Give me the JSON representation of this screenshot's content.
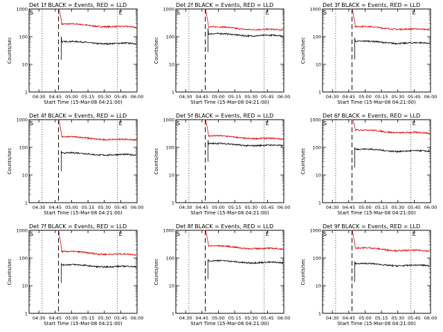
{
  "chart_data": [
    {
      "type": "line",
      "title": "Det 1f BLACK = Events, RED = LLD",
      "xlabel": "Start Time (15-Mar-08 04:21:00)",
      "ylabel": "Counts/sec",
      "x_ticks": [
        "04:30",
        "04:45",
        "05:00",
        "05:15",
        "05:30",
        "05:45",
        "06:00"
      ],
      "y_ticks": [
        "1",
        "10",
        "100",
        "1000"
      ],
      "y_scale": "log",
      "ylim": [
        1,
        1000
      ],
      "markers": {
        "start": "S",
        "end": "E"
      },
      "events_level": 58,
      "lld_level": 210,
      "events_peak": 100,
      "lld_peak": 2000
    },
    {
      "type": "line",
      "title": "Det 2f BLACK = Events, RED = LLD",
      "xlabel": "Start Time (15-Mar-08 04:21:00)",
      "ylabel": "Counts/sec",
      "x_ticks": [
        "04:30",
        "04:45",
        "05:00",
        "05:15",
        "05:30",
        "05:45",
        "06:00"
      ],
      "y_ticks": [
        "1",
        "10",
        "100",
        "1000"
      ],
      "y_scale": "log",
      "ylim": [
        1,
        1000
      ],
      "markers": {
        "start": "S",
        "end": "E"
      },
      "events_level": 112,
      "lld_level": 165,
      "events_peak": 200,
      "lld_peak": 2000
    },
    {
      "type": "line",
      "title": "Det 3f BLACK = Events, RED = LLD",
      "xlabel": "Start Time (15-Mar-08 04:21:00)",
      "ylabel": "Counts/sec",
      "x_ticks": [
        "04:30",
        "04:45",
        "05:00",
        "05:15",
        "05:30",
        "05:45",
        "06:00"
      ],
      "y_ticks": [
        "1",
        "10",
        "100",
        "1000"
      ],
      "y_scale": "log",
      "ylim": [
        1,
        1000
      ],
      "markers": {
        "start": "S",
        "end": "E"
      },
      "events_level": 60,
      "lld_level": 170,
      "events_peak": 90,
      "lld_peak": 2000
    },
    {
      "type": "line",
      "title": "Det 4f BLACK = Events, RED = LLD",
      "xlabel": "Start Time (15-Mar-08 04:21:00)",
      "ylabel": "Counts/sec",
      "x_ticks": [
        "04:30",
        "04:45",
        "05:00",
        "05:15",
        "05:30",
        "05:45",
        "06:00"
      ],
      "y_ticks": [
        "1",
        "10",
        "100",
        "1000"
      ],
      "y_scale": "log",
      "ylim": [
        1,
        1000
      ],
      "markers": {
        "start": "S",
        "end": "E"
      },
      "events_level": 55,
      "lld_level": 175,
      "events_peak": 75,
      "lld_peak": 2000
    },
    {
      "type": "line",
      "title": "Det 5f BLACK = Events, RED = LLD",
      "xlabel": "Start Time (15-Mar-08 04:21:00)",
      "ylabel": "Counts/sec",
      "x_ticks": [
        "04:30",
        "04:45",
        "05:00",
        "05:15",
        "05:30",
        "05:45",
        "06:00"
      ],
      "y_ticks": [
        "1",
        "10",
        "100",
        "1000"
      ],
      "y_scale": "log",
      "ylim": [
        1,
        1000
      ],
      "markers": {
        "start": "S",
        "end": "E"
      },
      "events_level": 120,
      "lld_level": 190,
      "events_peak": 180,
      "lld_peak": 2000
    },
    {
      "type": "line",
      "title": "Det 6f BLACK = Events, RED = LLD",
      "xlabel": "Start Time (15-Mar-08 04:21:00)",
      "ylabel": "Counts/sec",
      "x_ticks": [
        "04:30",
        "04:45",
        "05:00",
        "05:15",
        "05:30",
        "05:45",
        "06:00"
      ],
      "y_ticks": [
        "1",
        "10",
        "100",
        "1000"
      ],
      "y_scale": "log",
      "ylim": [
        1,
        1000
      ],
      "markers": {
        "start": "S",
        "end": "E"
      },
      "events_level": 75,
      "lld_level": 310,
      "events_peak": 100,
      "lld_peak": 2000
    },
    {
      "type": "line",
      "title": "Det 7f BLACK = Events, RED = LLD",
      "xlabel": "Start Time (15-Mar-08 04:21:00)",
      "ylabel": "Counts/sec",
      "x_ticks": [
        "04:30",
        "04:45",
        "05:00",
        "05:15",
        "05:30",
        "05:45",
        "06:00"
      ],
      "y_ticks": [
        "1",
        "10",
        "100",
        "1000"
      ],
      "y_scale": "log",
      "ylim": [
        1,
        1000
      ],
      "markers": {
        "start": "S",
        "end": "E"
      },
      "events_level": 50,
      "lld_level": 125,
      "events_peak": 65,
      "lld_peak": 2000
    },
    {
      "type": "line",
      "title": "Det 8f BLACK = Events, RED = LLD",
      "xlabel": "Start Time (15-Mar-08 04:21:00)",
      "ylabel": "Counts/sec",
      "x_ticks": [
        "04:30",
        "04:45",
        "05:00",
        "05:15",
        "05:30",
        "05:45",
        "06:00"
      ],
      "y_ticks": [
        "1",
        "10",
        "100",
        "1000"
      ],
      "y_scale": "log",
      "ylim": [
        1,
        1000
      ],
      "markers": {
        "start": "S",
        "end": "E"
      },
      "events_level": 70,
      "lld_level": 200,
      "events_peak": 90,
      "lld_peak": 2000
    },
    {
      "type": "line",
      "title": "Det 9f BLACK = Events, RED = LLD",
      "xlabel": "Start Time (15-Mar-08 04:21:00)",
      "ylabel": "Counts/sec",
      "x_ticks": [
        "04:30",
        "04:45",
        "05:00",
        "05:15",
        "05:30",
        "05:45",
        "06:00"
      ],
      "y_ticks": [
        "1",
        "10",
        "100",
        "1000"
      ],
      "y_scale": "log",
      "ylim": [
        1,
        1000
      ],
      "markers": {
        "start": "S",
        "end": "E"
      },
      "events_level": 55,
      "lld_level": 170,
      "events_peak": 75,
      "lld_peak": 2000
    }
  ]
}
